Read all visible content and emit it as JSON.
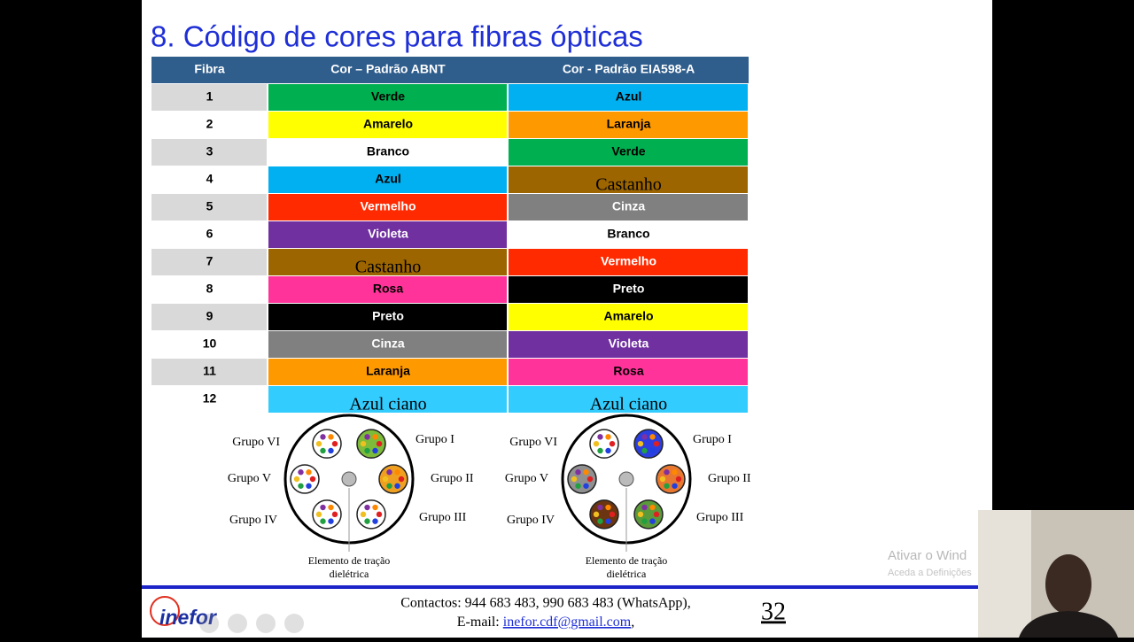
{
  "title": "8. Código de cores para fibras ópticas",
  "table": {
    "headers": [
      "Fibra",
      "Cor – Padrão ABNT",
      "Cor - Padrão EIA598-A"
    ],
    "rows": [
      [
        "1",
        "Verde",
        "Azul"
      ],
      [
        "2",
        "Amarelo",
        "Laranja"
      ],
      [
        "3",
        "Branco",
        "Verde"
      ],
      [
        "4",
        "Azul",
        "Castanho"
      ],
      [
        "5",
        "Vermelho",
        "Cinza"
      ],
      [
        "6",
        "Violeta",
        "Branco"
      ],
      [
        "7",
        "Castanho",
        "Vermelho"
      ],
      [
        "8",
        "Rosa",
        "Preto"
      ],
      [
        "9",
        "Preto",
        "Amarelo"
      ],
      [
        "10",
        "Cinza",
        "Violeta"
      ],
      [
        "11",
        "Laranja",
        "Rosa"
      ],
      [
        "12",
        "Azul ciano",
        "Azul ciano"
      ]
    ]
  },
  "diagrams": [
    {
      "groups": [
        "Grupo I",
        "Grupo II",
        "Grupo III",
        "Grupo IV",
        "Grupo V",
        "Grupo VI"
      ],
      "caption": [
        "Elemento de tração",
        "dielétrica"
      ]
    },
    {
      "groups": [
        "Grupo I",
        "Grupo II",
        "Grupo III",
        "Grupo IV",
        "Grupo V",
        "Grupo VI"
      ],
      "caption": [
        "Elemento de tração",
        "dielétrica"
      ]
    }
  ],
  "footer": {
    "contacts": "Contactos: 944 683 483, 990 683 483 (WhatsApp),",
    "email_prefix": "E-mail: ",
    "email": "inefor.cdf@gmail.com",
    "email_suffix": ",",
    "page_number": "32",
    "logo": "inefor"
  },
  "watermark": {
    "title": "Ativar o Wind",
    "subtitle": "Aceda a Definições"
  }
}
